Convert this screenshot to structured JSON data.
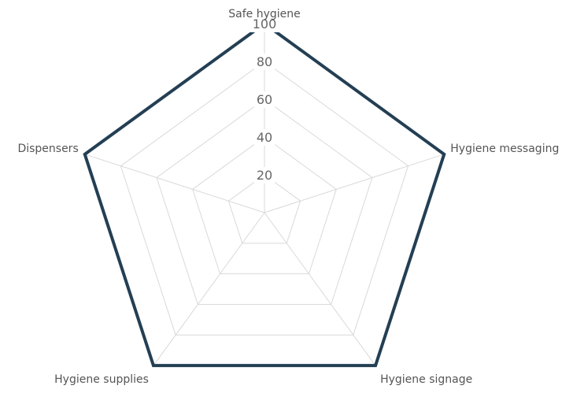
{
  "chart_data": {
    "type": "radar",
    "axes": [
      "Safe hygiene",
      "Hygiene messaging",
      "Hygiene signage",
      "Hygiene supplies",
      "Dispensers"
    ],
    "ticks": [
      20,
      40,
      60,
      80,
      100
    ],
    "rlim": [
      0,
      100
    ],
    "grid": true,
    "series": [
      {
        "values": [
          100,
          100,
          100,
          100,
          100
        ],
        "color": "#233f54"
      }
    ]
  }
}
